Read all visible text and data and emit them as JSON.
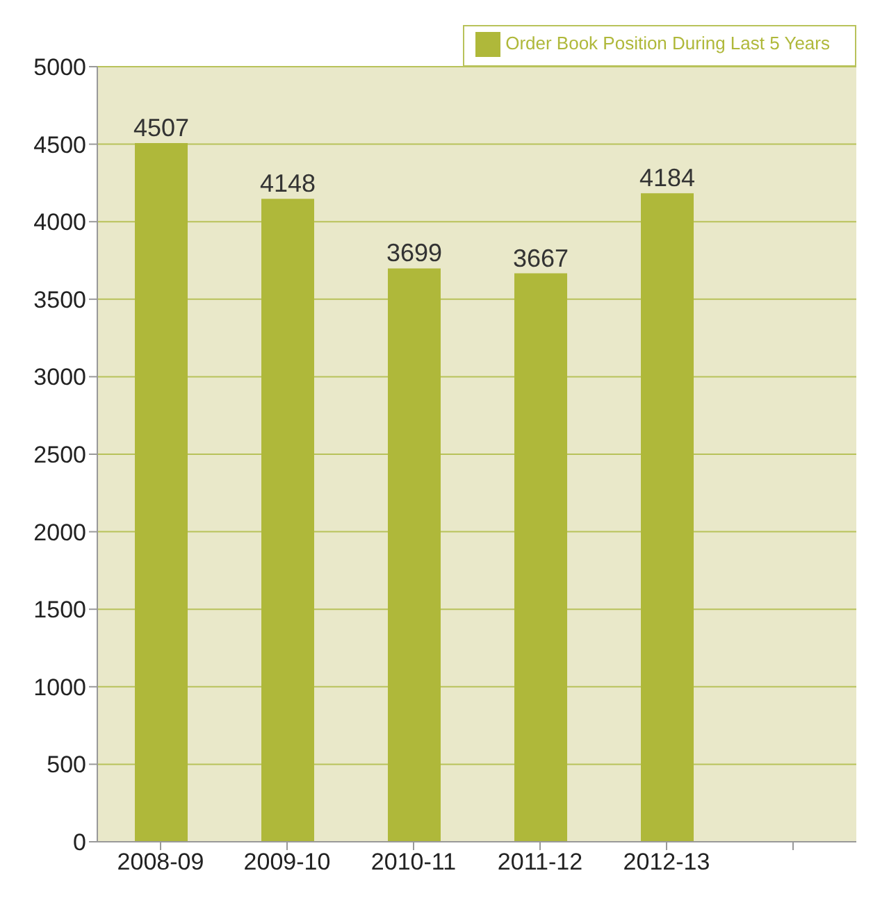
{
  "chart_data": {
    "type": "bar",
    "categories": [
      "2008-09",
      "2009-10",
      "2010-11",
      "2011-12",
      "2012-13",
      null
    ],
    "series": [
      {
        "name": "Order Book Position During Last 5 Years",
        "color": "#afb83a",
        "values": [
          4507,
          4148,
          3699,
          3667,
          4184,
          null
        ]
      }
    ],
    "ylim": [
      0,
      5000
    ],
    "yticks": [
      0,
      500,
      1000,
      1500,
      2000,
      2500,
      3000,
      3500,
      4000,
      4500,
      5000
    ],
    "grid": "y",
    "legend": "top right",
    "data_labels": true
  }
}
